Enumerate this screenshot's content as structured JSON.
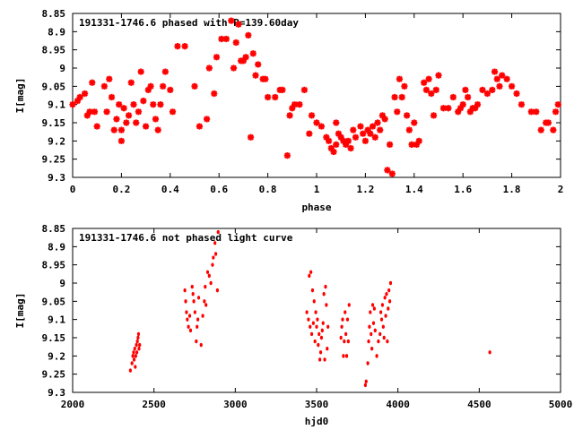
{
  "chart_data": [
    {
      "type": "scatter",
      "title": "191331-1746.6 phased with P=139.60day",
      "xlabel": "phase",
      "ylabel": "I[mag]",
      "xlim": [
        0,
        2
      ],
      "ylim": [
        8.85,
        9.3
      ],
      "y_inverted": true,
      "grid": false,
      "x_ticks": [
        "0",
        "0.2",
        "0.4",
        "0.6",
        "0.8",
        "1",
        "1.2",
        "1.4",
        "1.6",
        "1.8",
        "2"
      ],
      "y_ticks": [
        "8.85",
        "8.9",
        "8.95",
        "9",
        "9.05",
        "9.1",
        "9.15",
        "9.2",
        "9.25",
        "9.3"
      ],
      "marker_color": "#ff0000",
      "marker": "star",
      "points": [
        [
          0.0,
          9.1
        ],
        [
          0.02,
          9.09
        ],
        [
          0.03,
          9.08
        ],
        [
          0.05,
          9.07
        ],
        [
          0.06,
          9.13
        ],
        [
          0.07,
          9.12
        ],
        [
          0.08,
          9.04
        ],
        [
          0.09,
          9.12
        ],
        [
          0.1,
          9.16
        ],
        [
          0.13,
          9.05
        ],
        [
          0.14,
          9.12
        ],
        [
          0.15,
          9.03
        ],
        [
          0.16,
          9.08
        ],
        [
          0.17,
          9.17
        ],
        [
          0.18,
          9.14
        ],
        [
          0.19,
          9.1
        ],
        [
          0.2,
          9.2
        ],
        [
          0.2,
          9.17
        ],
        [
          0.21,
          9.11
        ],
        [
          0.22,
          9.15
        ],
        [
          0.23,
          9.13
        ],
        [
          0.24,
          9.04
        ],
        [
          0.25,
          9.1
        ],
        [
          0.26,
          9.15
        ],
        [
          0.27,
          9.12
        ],
        [
          0.28,
          9.01
        ],
        [
          0.29,
          9.09
        ],
        [
          0.3,
          9.16
        ],
        [
          0.31,
          9.06
        ],
        [
          0.32,
          9.05
        ],
        [
          0.33,
          9.1
        ],
        [
          0.34,
          9.14
        ],
        [
          0.35,
          9.17
        ],
        [
          0.36,
          9.1
        ],
        [
          0.37,
          9.05
        ],
        [
          0.38,
          9.01
        ],
        [
          0.4,
          9.06
        ],
        [
          0.41,
          9.12
        ],
        [
          0.43,
          8.94
        ],
        [
          0.46,
          8.94
        ],
        [
          0.5,
          9.05
        ],
        [
          0.52,
          9.16
        ],
        [
          0.55,
          9.14
        ],
        [
          0.56,
          9.0
        ],
        [
          0.58,
          9.07
        ],
        [
          0.59,
          8.97
        ],
        [
          0.61,
          8.92
        ],
        [
          0.63,
          8.92
        ],
        [
          0.65,
          8.87
        ],
        [
          0.66,
          9.0
        ],
        [
          0.67,
          8.93
        ],
        [
          0.68,
          8.88
        ],
        [
          0.69,
          8.98
        ],
        [
          0.7,
          8.98
        ],
        [
          0.71,
          8.97
        ],
        [
          0.72,
          8.91
        ],
        [
          0.73,
          9.19
        ],
        [
          0.74,
          8.96
        ],
        [
          0.75,
          9.02
        ],
        [
          0.76,
          8.99
        ],
        [
          0.78,
          9.03
        ],
        [
          0.79,
          9.03
        ],
        [
          0.8,
          9.08
        ],
        [
          0.83,
          9.08
        ],
        [
          0.85,
          9.06
        ],
        [
          0.86,
          9.06
        ],
        [
          0.88,
          9.24
        ],
        [
          0.89,
          9.13
        ],
        [
          0.9,
          9.11
        ],
        [
          0.91,
          9.1
        ],
        [
          0.93,
          9.1
        ],
        [
          0.95,
          9.06
        ],
        [
          0.97,
          9.18
        ],
        [
          0.98,
          9.13
        ],
        [
          1.0,
          9.15
        ],
        [
          1.02,
          9.16
        ],
        [
          1.04,
          9.19
        ],
        [
          1.05,
          9.2
        ],
        [
          1.06,
          9.22
        ],
        [
          1.07,
          9.23
        ],
        [
          1.08,
          9.21
        ],
        [
          1.08,
          9.15
        ],
        [
          1.09,
          9.18
        ],
        [
          1.1,
          9.19
        ],
        [
          1.11,
          9.2
        ],
        [
          1.12,
          9.21
        ],
        [
          1.13,
          9.2
        ],
        [
          1.14,
          9.22
        ],
        [
          1.15,
          9.17
        ],
        [
          1.16,
          9.19
        ],
        [
          1.18,
          9.16
        ],
        [
          1.19,
          9.18
        ],
        [
          1.2,
          9.2
        ],
        [
          1.21,
          9.17
        ],
        [
          1.22,
          9.18
        ],
        [
          1.23,
          9.16
        ],
        [
          1.24,
          9.19
        ],
        [
          1.25,
          9.15
        ],
        [
          1.26,
          9.17
        ],
        [
          1.27,
          9.13
        ],
        [
          1.28,
          9.14
        ],
        [
          1.29,
          9.28
        ],
        [
          1.3,
          9.21
        ],
        [
          1.31,
          9.29
        ],
        [
          1.32,
          9.08
        ],
        [
          1.33,
          9.12
        ],
        [
          1.34,
          9.03
        ],
        [
          1.35,
          9.08
        ],
        [
          1.36,
          9.05
        ],
        [
          1.37,
          9.13
        ],
        [
          1.38,
          9.17
        ],
        [
          1.39,
          9.21
        ],
        [
          1.4,
          9.15
        ],
        [
          1.41,
          9.21
        ],
        [
          1.42,
          9.2
        ],
        [
          1.44,
          9.04
        ],
        [
          1.45,
          9.06
        ],
        [
          1.46,
          9.03
        ],
        [
          1.47,
          9.07
        ],
        [
          1.48,
          9.13
        ],
        [
          1.49,
          9.06
        ],
        [
          1.5,
          9.02
        ],
        [
          1.52,
          9.11
        ],
        [
          1.54,
          9.11
        ],
        [
          1.56,
          9.08
        ],
        [
          1.58,
          9.12
        ],
        [
          1.59,
          9.11
        ],
        [
          1.6,
          9.1
        ],
        [
          1.61,
          9.06
        ],
        [
          1.62,
          9.08
        ],
        [
          1.63,
          9.12
        ],
        [
          1.64,
          9.11
        ],
        [
          1.65,
          9.11
        ],
        [
          1.66,
          9.1
        ],
        [
          1.68,
          9.06
        ],
        [
          1.7,
          9.07
        ],
        [
          1.72,
          9.06
        ],
        [
          1.73,
          9.01
        ],
        [
          1.74,
          9.03
        ],
        [
          1.75,
          9.05
        ],
        [
          1.76,
          9.02
        ],
        [
          1.78,
          9.03
        ],
        [
          1.8,
          9.05
        ],
        [
          1.82,
          9.07
        ],
        [
          1.84,
          9.1
        ],
        [
          1.88,
          9.12
        ],
        [
          1.9,
          9.12
        ],
        [
          1.92,
          9.17
        ],
        [
          1.94,
          9.15
        ],
        [
          1.95,
          9.15
        ],
        [
          1.97,
          9.17
        ],
        [
          1.98,
          9.12
        ],
        [
          1.99,
          9.1
        ]
      ]
    },
    {
      "type": "scatter",
      "title": "191331-1746.6 not phased light curve",
      "xlabel": "hjd0",
      "ylabel": "I[mag]",
      "xlim": [
        2000,
        5000
      ],
      "ylim": [
        8.85,
        9.3
      ],
      "y_inverted": true,
      "grid": false,
      "x_ticks": [
        "2000",
        "2500",
        "3000",
        "3500",
        "4000",
        "4500",
        "5000"
      ],
      "y_ticks": [
        "8.85",
        "8.9",
        "8.95",
        "9",
        "9.05",
        "9.1",
        "9.15",
        "9.2",
        "9.25",
        "9.3"
      ],
      "marker_color": "#ff0000",
      "marker": "dot",
      "points": [
        [
          2355,
          9.24
        ],
        [
          2365,
          9.22
        ],
        [
          2370,
          9.2
        ],
        [
          2375,
          9.19
        ],
        [
          2378,
          9.21
        ],
        [
          2382,
          9.18
        ],
        [
          2385,
          9.23
        ],
        [
          2388,
          9.2
        ],
        [
          2392,
          9.17
        ],
        [
          2395,
          9.19
        ],
        [
          2398,
          9.16
        ],
        [
          2402,
          9.15
        ],
        [
          2405,
          9.14
        ],
        [
          2408,
          9.18
        ],
        [
          2412,
          9.17
        ],
        [
          2690,
          9.02
        ],
        [
          2695,
          9.05
        ],
        [
          2700,
          9.08
        ],
        [
          2705,
          9.1
        ],
        [
          2712,
          9.12
        ],
        [
          2720,
          9.09
        ],
        [
          2725,
          9.13
        ],
        [
          2735,
          9.01
        ],
        [
          2740,
          9.03
        ],
        [
          2745,
          9.05
        ],
        [
          2752,
          9.08
        ],
        [
          2760,
          9.16
        ],
        [
          2765,
          9.12
        ],
        [
          2770,
          9.1
        ],
        [
          2775,
          9.04
        ],
        [
          2790,
          9.17
        ],
        [
          2800,
          9.09
        ],
        [
          2810,
          9.05
        ],
        [
          2815,
          9.01
        ],
        [
          2820,
          9.06
        ],
        [
          2830,
          8.97
        ],
        [
          2840,
          8.98
        ],
        [
          2850,
          9.0
        ],
        [
          2860,
          8.95
        ],
        [
          2865,
          8.93
        ],
        [
          2875,
          8.89
        ],
        [
          2880,
          8.92
        ],
        [
          2890,
          9.02
        ],
        [
          2895,
          8.86
        ],
        [
          3440,
          9.08
        ],
        [
          3450,
          9.1
        ],
        [
          3455,
          8.98
        ],
        [
          3460,
          9.12
        ],
        [
          3465,
          8.97
        ],
        [
          3470,
          9.14
        ],
        [
          3475,
          9.02
        ],
        [
          3480,
          9.11
        ],
        [
          3485,
          9.05
        ],
        [
          3490,
          9.16
        ],
        [
          3495,
          9.08
        ],
        [
          3500,
          9.12
        ],
        [
          3505,
          9.1
        ],
        [
          3510,
          9.17
        ],
        [
          3515,
          9.14
        ],
        [
          3520,
          9.21
        ],
        [
          3525,
          9.19
        ],
        [
          3530,
          9.15
        ],
        [
          3535,
          9.13
        ],
        [
          3540,
          9.11
        ],
        [
          3545,
          9.03
        ],
        [
          3550,
          9.21
        ],
        [
          3555,
          9.01
        ],
        [
          3560,
          9.06
        ],
        [
          3565,
          9.18
        ],
        [
          3570,
          9.12
        ],
        [
          3650,
          9.15
        ],
        [
          3655,
          9.12
        ],
        [
          3660,
          9.1
        ],
        [
          3665,
          9.2
        ],
        [
          3670,
          9.16
        ],
        [
          3675,
          9.08
        ],
        [
          3680,
          9.14
        ],
        [
          3685,
          9.2
        ],
        [
          3690,
          9.1
        ],
        [
          3695,
          9.16
        ],
        [
          3700,
          9.06
        ],
        [
          3800,
          9.28
        ],
        [
          3805,
          9.27
        ],
        [
          3815,
          9.22
        ],
        [
          3820,
          9.16
        ],
        [
          3825,
          9.12
        ],
        [
          3830,
          9.08
        ],
        [
          3835,
          9.14
        ],
        [
          3840,
          9.18
        ],
        [
          3845,
          9.06
        ],
        [
          3850,
          9.11
        ],
        [
          3855,
          9.07
        ],
        [
          3860,
          9.13
        ],
        [
          3870,
          9.2
        ],
        [
          3880,
          9.16
        ],
        [
          3890,
          9.14
        ],
        [
          3895,
          9.08
        ],
        [
          3900,
          9.1
        ],
        [
          3905,
          9.06
        ],
        [
          3910,
          9.12
        ],
        [
          3915,
          9.15
        ],
        [
          3920,
          9.04
        ],
        [
          3925,
          9.09
        ],
        [
          3930,
          9.03
        ],
        [
          3935,
          9.16
        ],
        [
          3940,
          9.07
        ],
        [
          3945,
          9.02
        ],
        [
          3950,
          9.05
        ],
        [
          3955,
          9.0
        ],
        [
          4565,
          9.19
        ]
      ]
    }
  ]
}
